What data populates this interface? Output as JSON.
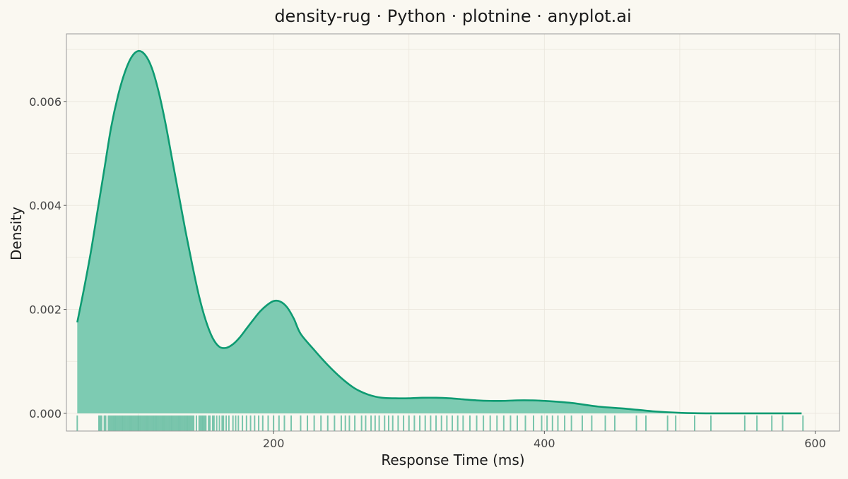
{
  "chart_data": {
    "type": "area",
    "title": "density-rug · Python · plotnine · anyplot.ai",
    "xlabel": "Response Time (ms)",
    "ylabel": "Density",
    "xlim": [
      47,
      618
    ],
    "ylim": [
      -0.00034,
      0.0073
    ],
    "x_ticks": [
      200,
      400,
      600
    ],
    "y_ticks": [
      0.0,
      0.002,
      0.004,
      0.006
    ],
    "x_tick_labels": [
      "200",
      "400",
      "600"
    ],
    "y_tick_labels": [
      "0.000",
      "0.002",
      "0.004",
      "0.006"
    ],
    "grid": true,
    "legend": "none",
    "colors": {
      "background": "#FAF8F1",
      "panel_border": "#9A9A9A",
      "grid": "#EAE6DC",
      "line": "#0E9B72",
      "fill": "#7DCBB2",
      "rug": "#0E9B72",
      "text": "#1A1A1A",
      "tick_text": "#444444"
    },
    "density_curve": {
      "x": [
        55,
        60,
        65,
        70,
        75,
        80,
        85,
        90,
        95,
        100,
        105,
        110,
        115,
        120,
        125,
        130,
        135,
        140,
        145,
        150,
        155,
        160,
        165,
        170,
        175,
        180,
        185,
        190,
        195,
        200,
        205,
        210,
        215,
        220,
        230,
        240,
        250,
        260,
        270,
        280,
        290,
        300,
        310,
        320,
        330,
        340,
        350,
        360,
        370,
        380,
        390,
        400,
        420,
        440,
        460,
        480,
        500,
        520,
        540,
        560,
        575,
        590
      ],
      "y": [
        0.00175,
        0.0024,
        0.0031,
        0.0039,
        0.0047,
        0.0055,
        0.0061,
        0.00655,
        0.00685,
        0.00697,
        0.0069,
        0.00665,
        0.0062,
        0.0056,
        0.0049,
        0.0042,
        0.0035,
        0.00285,
        0.00225,
        0.00178,
        0.00145,
        0.00128,
        0.00126,
        0.00133,
        0.00146,
        0.00163,
        0.0018,
        0.00196,
        0.00208,
        0.00216,
        0.00215,
        0.00204,
        0.00182,
        0.00153,
        0.00122,
        0.00093,
        0.00068,
        0.00048,
        0.00036,
        0.0003,
        0.00029,
        0.00029,
        0.0003,
        0.0003,
        0.00029,
        0.00027,
        0.00025,
        0.00024,
        0.00024,
        0.00025,
        0.00025,
        0.00024,
        0.0002,
        0.00013,
        9e-05,
        4e-05,
        1e-05,
        0.0,
        0.0,
        0.0,
        0.0,
        0.0
      ]
    },
    "rug_x": [
      55,
      71,
      72,
      73,
      75,
      76,
      78,
      79,
      80,
      81,
      82,
      83,
      84,
      85,
      86,
      87,
      88,
      89,
      90,
      91,
      92,
      93,
      94,
      95,
      96,
      97,
      98,
      99,
      100,
      101,
      102,
      103,
      104,
      105,
      106,
      107,
      108,
      109,
      110,
      111,
      112,
      113,
      114,
      115,
      116,
      117,
      118,
      119,
      120,
      121,
      122,
      123,
      124,
      125,
      126,
      127,
      128,
      129,
      130,
      131,
      132,
      133,
      134,
      135,
      136,
      137,
      138,
      139,
      140,
      141,
      143,
      145,
      146,
      147,
      148,
      149,
      150,
      152,
      153,
      155,
      156,
      158,
      160,
      162,
      163,
      165,
      167,
      170,
      172,
      174,
      177,
      180,
      183,
      186,
      189,
      192,
      196,
      200,
      204,
      208,
      213,
      220,
      225,
      230,
      235,
      240,
      245,
      250,
      253,
      256,
      260,
      265,
      268,
      272,
      275,
      278,
      282,
      285,
      288,
      292,
      296,
      300,
      304,
      308,
      312,
      316,
      320,
      324,
      328,
      332,
      336,
      340,
      345,
      350,
      355,
      360,
      365,
      370,
      375,
      380,
      386,
      392,
      398,
      402,
      406,
      410,
      415,
      420,
      428,
      435,
      445,
      452,
      468,
      475,
      491,
      497,
      511,
      523,
      548,
      557,
      568,
      576,
      591
    ]
  }
}
